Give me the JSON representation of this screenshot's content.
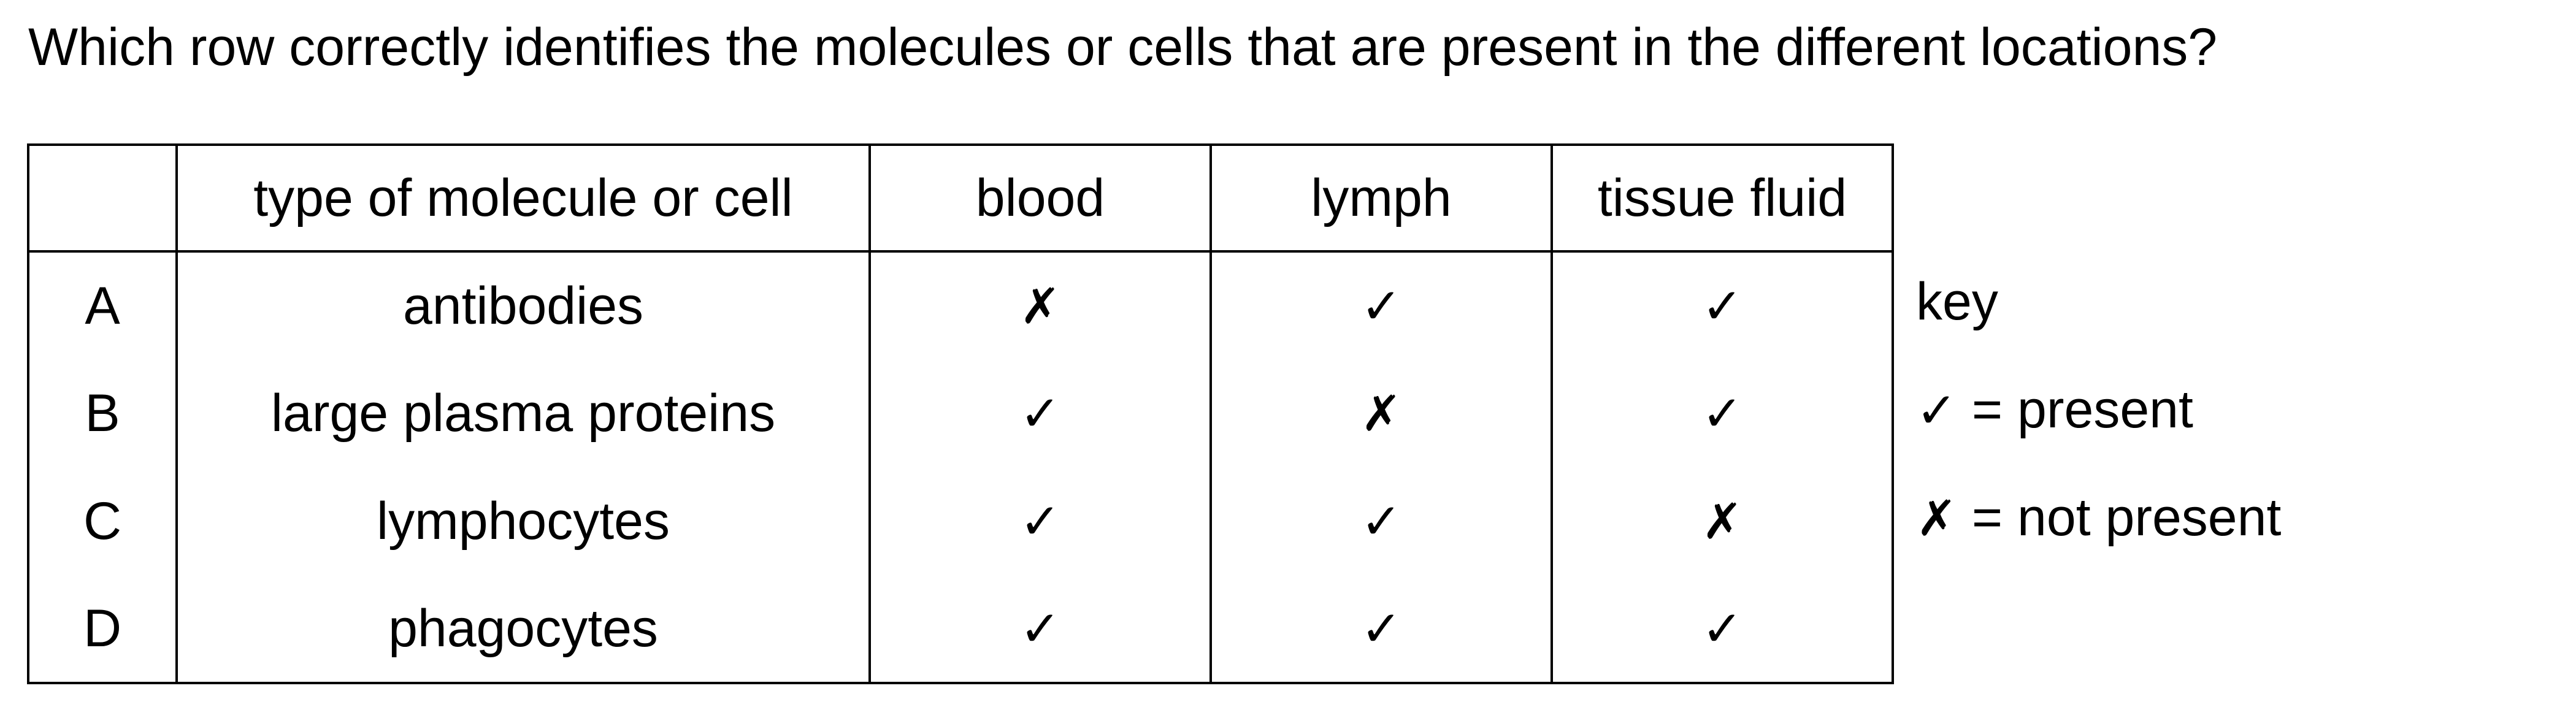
{
  "question": "Which row correctly identifies the molecules or cells that are present in the different locations?",
  "table": {
    "headers": [
      "",
      "type of molecule or cell",
      "blood",
      "lymph",
      "tissue fluid"
    ],
    "rows": [
      {
        "letter": "A",
        "item": "antibodies",
        "blood": "✗",
        "lymph": "✓",
        "tissue_fluid": "✓"
      },
      {
        "letter": "B",
        "item": "large plasma proteins",
        "blood": "✓",
        "lymph": "✗",
        "tissue_fluid": "✓"
      },
      {
        "letter": "C",
        "item": "lymphocytes",
        "blood": "✓",
        "lymph": "✓",
        "tissue_fluid": "✗"
      },
      {
        "letter": "D",
        "item": "phagocytes",
        "blood": "✓",
        "lymph": "✓",
        "tissue_fluid": "✓"
      }
    ]
  },
  "key": {
    "title": "key",
    "present_symbol": "✓",
    "present_text": " = present",
    "absent_symbol": "✗",
    "absent_text": " = not present"
  }
}
